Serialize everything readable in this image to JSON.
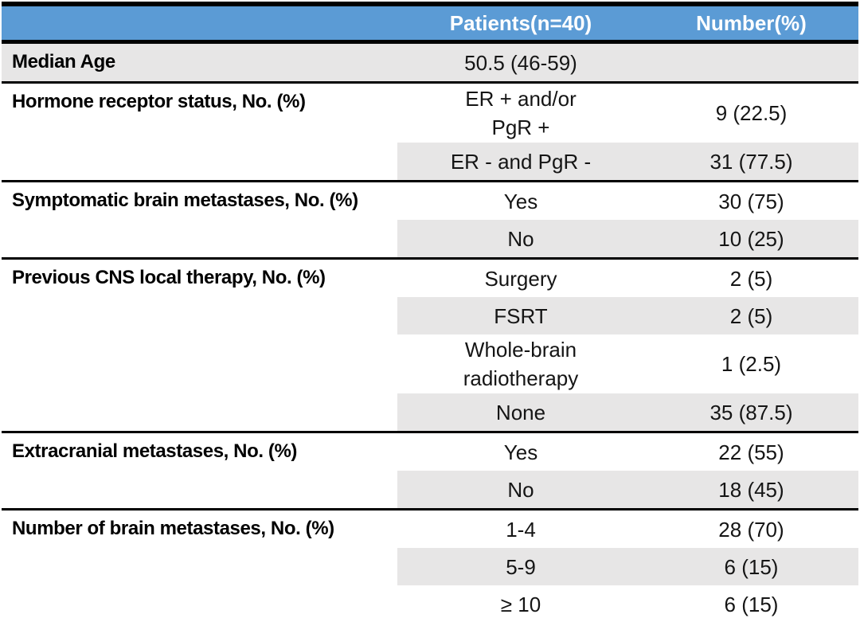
{
  "figure": {
    "colors": {
      "header_bg": "#5B9BD5",
      "header_text": "#FFFFFF",
      "alt_row_bg": "#E7E6E6",
      "rule": "#000000"
    },
    "header": {
      "label_col": "",
      "patients_col": "Patients(n=40)",
      "number_col": "Number(%)"
    },
    "sections": [
      {
        "label": "Median Age",
        "rows": [
          {
            "value": "50.5 (46-59)",
            "number": ""
          }
        ]
      },
      {
        "label": "Hormone receptor status, No. (%)",
        "rows": [
          {
            "value": "ER + and/or\nPgR +",
            "number": "9 (22.5)"
          },
          {
            "value": "ER - and PgR -",
            "number": "31 (77.5)"
          }
        ]
      },
      {
        "label": "Symptomatic brain metastases, No. (%)",
        "rows": [
          {
            "value": "Yes",
            "number": "30 (75)"
          },
          {
            "value": "No",
            "number": "10 (25)"
          }
        ]
      },
      {
        "label": "Previous CNS local therapy, No. (%)",
        "rows": [
          {
            "value": "Surgery",
            "number": "2 (5)"
          },
          {
            "value": "FSRT",
            "number": "2 (5)"
          },
          {
            "value": "Whole-brain\nradiotherapy",
            "number": "1 (2.5)"
          },
          {
            "value": "None",
            "number": "35 (87.5)"
          }
        ]
      },
      {
        "label": "Extracranial metastases, No. (%)",
        "rows": [
          {
            "value": "Yes",
            "number": "22 (55)"
          },
          {
            "value": "No",
            "number": "18 (45)"
          }
        ]
      },
      {
        "label": "Number of brain metastases, No. (%)",
        "rows": [
          {
            "value": "1-4",
            "number": "28 (70)"
          },
          {
            "value": "5-9",
            "number": "6 (15)"
          },
          {
            "value": "≥ 10",
            "number": "6 (15)"
          }
        ]
      }
    ]
  }
}
